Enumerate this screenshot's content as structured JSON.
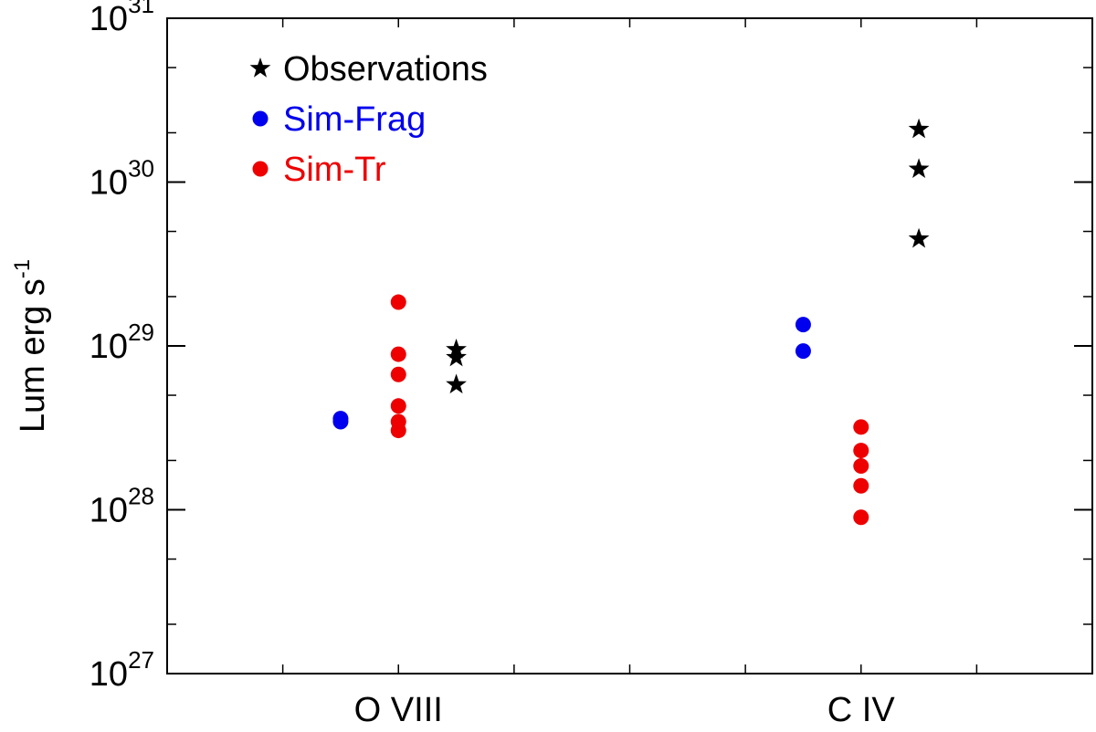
{
  "chart_data": {
    "type": "scatter",
    "title": "",
    "xlabel": "",
    "ylabel": "Lum erg s",
    "ylabel_superscript": "-1",
    "yscale": "log",
    "ylim": [
      1e+27,
      1e+31
    ],
    "xlim": [
      0,
      4
    ],
    "categories": [
      {
        "label": "O VIII",
        "x": 1
      },
      {
        "label": "C IV",
        "x": 3
      }
    ],
    "y_ticks": [
      {
        "base": "10",
        "exp": "27",
        "value": 1e+27
      },
      {
        "base": "10",
        "exp": "28",
        "value": 1e+28
      },
      {
        "base": "10",
        "exp": "29",
        "value": 1e+29
      },
      {
        "base": "10",
        "exp": "30",
        "value": 1e+30
      },
      {
        "base": "10",
        "exp": "31",
        "value": 1e+31
      }
    ],
    "x_minor_ticks": [
      0.5,
      1,
      1.5,
      2,
      2.5,
      3,
      3.5
    ],
    "legend_position": "top-left",
    "series": [
      {
        "name": "Observations",
        "marker": "star",
        "color": "#000000",
        "points": [
          {
            "x": 1.25,
            "y": 9.5e+28
          },
          {
            "x": 1.25,
            "y": 8.5e+28
          },
          {
            "x": 1.25,
            "y": 5.8e+28
          },
          {
            "x": 3.25,
            "y": 2.1e+30
          },
          {
            "x": 3.25,
            "y": 1.2e+30
          },
          {
            "x": 3.25,
            "y": 4.5e+29
          }
        ]
      },
      {
        "name": "Sim-Frag",
        "marker": "circle",
        "color": "#0000ee",
        "points": [
          {
            "x": 0.75,
            "y": 3.6e+28
          },
          {
            "x": 0.75,
            "y": 3.45e+28
          },
          {
            "x": 2.75,
            "y": 1.35e+29
          },
          {
            "x": 2.75,
            "y": 9.3e+28
          }
        ]
      },
      {
        "name": "Sim-Tr",
        "marker": "circle",
        "color": "#ee0000",
        "points": [
          {
            "x": 1,
            "y": 1.85e+29
          },
          {
            "x": 1,
            "y": 8.9e+28
          },
          {
            "x": 1,
            "y": 6.7e+28
          },
          {
            "x": 1,
            "y": 4.3e+28
          },
          {
            "x": 1,
            "y": 3.45e+28
          },
          {
            "x": 1,
            "y": 3.05e+28
          },
          {
            "x": 3,
            "y": 3.2e+28
          },
          {
            "x": 3,
            "y": 2.3e+28
          },
          {
            "x": 3,
            "y": 1.85e+28
          },
          {
            "x": 3,
            "y": 1.4e+28
          },
          {
            "x": 3,
            "y": 9e+27
          }
        ]
      }
    ]
  }
}
